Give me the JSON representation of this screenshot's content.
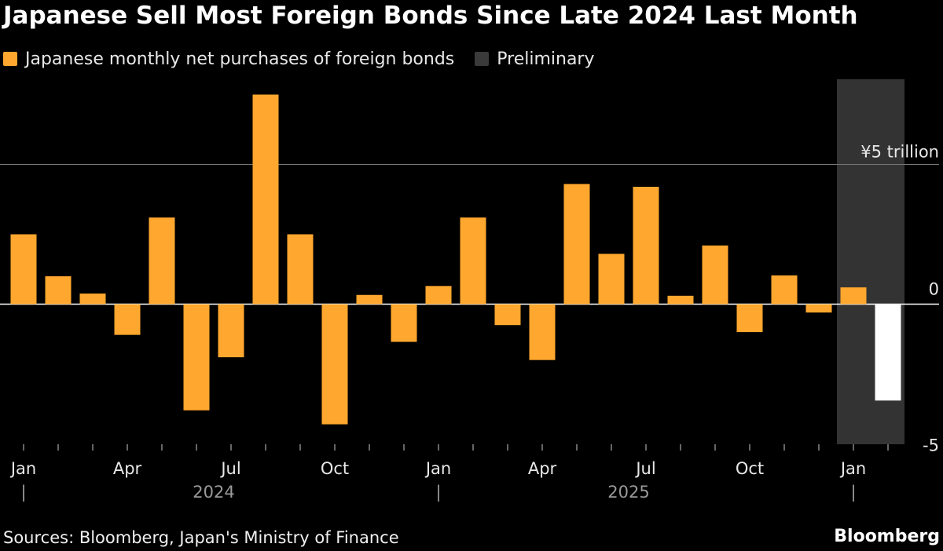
{
  "title": "Japanese Sell Most Foreign Bonds Since Late 2024 Last Month",
  "legend": {
    "series_label": "Japanese monthly net purchases of foreign bonds",
    "preliminary_label": "Preliminary"
  },
  "colors": {
    "bar": "#ffa72e",
    "preliminary_bar": "#ffffff",
    "preliminary_band": "#333333",
    "preliminary_swatch": "#3a3a3a",
    "background": "#000000"
  },
  "source": "Sources: Bloomberg, Japan's Ministry of Finance",
  "brand": "Bloomberg",
  "chart_data": {
    "type": "bar",
    "unit_label": "¥5 trillion",
    "ylim": [
      -5,
      7.5
    ],
    "yticks": [
      {
        "value": 5,
        "label": "¥5 trillion"
      },
      {
        "value": 0,
        "label": "0"
      },
      {
        "value": -5,
        "label": "-5"
      }
    ],
    "categories": [
      "2024-01",
      "2024-02",
      "2024-03",
      "2024-04",
      "2024-05",
      "2024-06",
      "2024-07",
      "2024-08",
      "2024-09",
      "2024-10",
      "2024-11",
      "2024-12",
      "2025-01",
      "2025-02",
      "2025-03",
      "2025-04",
      "2025-05",
      "2025-06",
      "2025-07",
      "2025-08",
      "2025-09",
      "2025-10",
      "2025-11",
      "2025-12",
      "2026-01",
      "2026-02"
    ],
    "values": [
      2.5,
      1.0,
      0.38,
      -1.1,
      3.1,
      -3.8,
      -1.9,
      7.5,
      2.5,
      -4.3,
      0.33,
      -1.35,
      0.65,
      3.1,
      -0.75,
      -2.0,
      4.3,
      1.8,
      4.2,
      0.3,
      2.1,
      -1.0,
      1.03,
      -0.3,
      0.6,
      -3.45
    ],
    "preliminary": [
      false,
      false,
      false,
      false,
      false,
      false,
      false,
      false,
      false,
      false,
      false,
      false,
      false,
      false,
      false,
      false,
      false,
      false,
      false,
      false,
      false,
      false,
      false,
      false,
      false,
      true
    ],
    "preliminary_band_range": [
      "2026-01",
      "2026-02"
    ],
    "x_tick_labels": [
      {
        "index": 0,
        "label": "Jan"
      },
      {
        "index": 3,
        "label": "Apr"
      },
      {
        "index": 6,
        "label": "Jul"
      },
      {
        "index": 9,
        "label": "Oct"
      },
      {
        "index": 12,
        "label": "Jan"
      },
      {
        "index": 15,
        "label": "Apr"
      },
      {
        "index": 18,
        "label": "Jul"
      },
      {
        "index": 21,
        "label": "Oct"
      },
      {
        "index": 24,
        "label": "Jan"
      }
    ],
    "year_labels": [
      {
        "label": "2024",
        "from_index": 0,
        "to_index": 11
      },
      {
        "label": "2025",
        "from_index": 12,
        "to_index": 23
      }
    ],
    "year_separator_label": "|"
  }
}
